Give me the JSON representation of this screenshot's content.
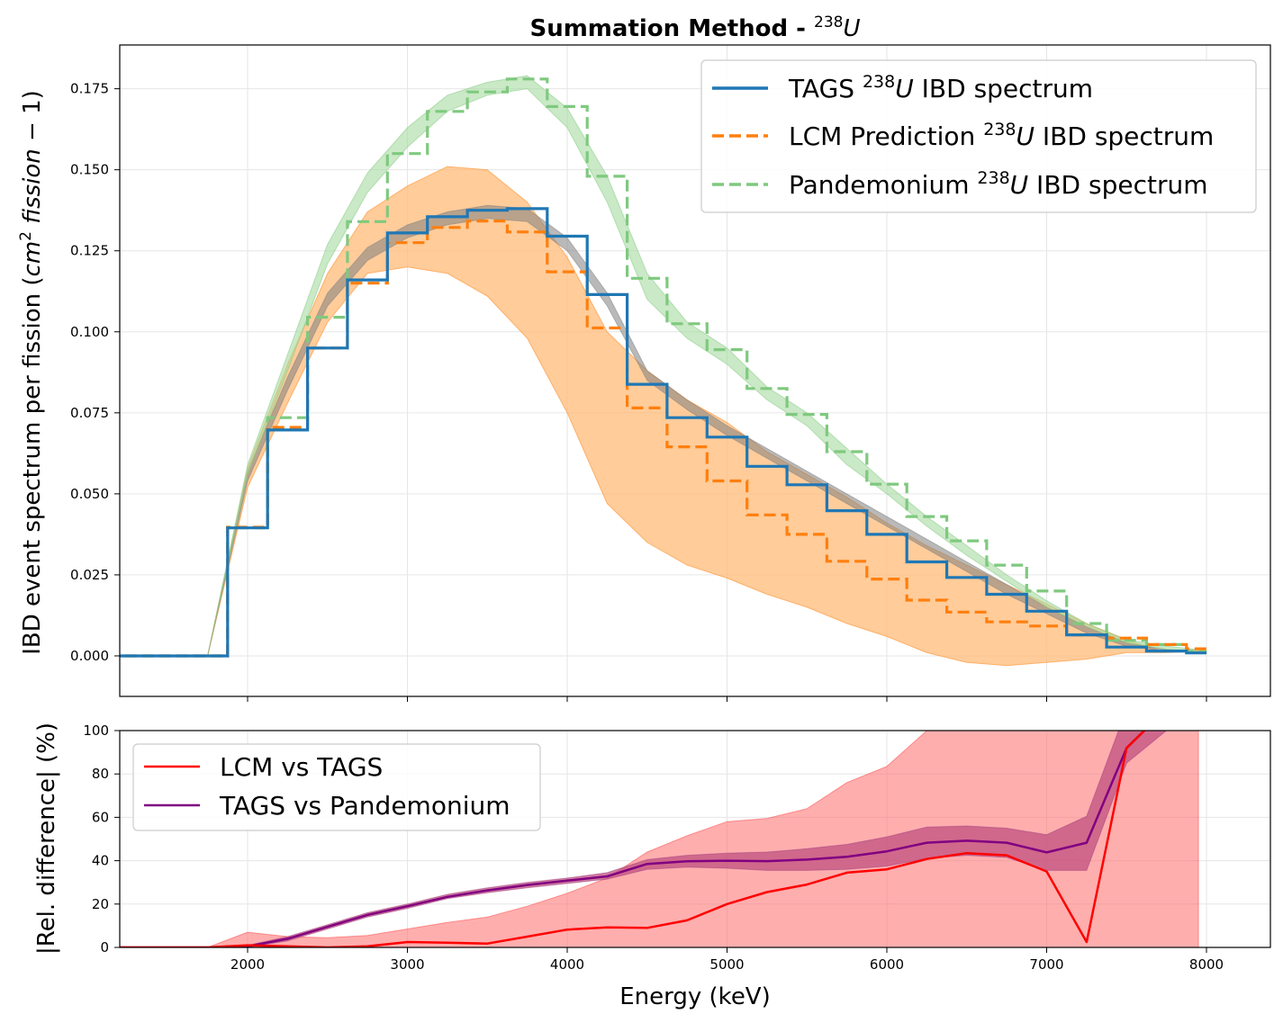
{
  "chart_data": [
    {
      "type": "line",
      "title": "Summation Method - ",
      "title_superscript": "238",
      "title_tail": "U",
      "ylabel": "IBD event spectrum per fission (",
      "ylabel_math": "cm",
      "ylabel_sup": "2",
      "ylabel_math2": " fission",
      "ylabel_tail": " − 1)",
      "xlim": [
        1200,
        8400
      ],
      "ylim": [
        -0.0125,
        0.1885
      ],
      "yticks": [
        0.0,
        0.025,
        0.05,
        0.075,
        0.1,
        0.125,
        0.15,
        0.175
      ],
      "ytick_labels": [
        "0.000",
        "0.025",
        "0.050",
        "0.075",
        "0.100",
        "0.125",
        "0.150",
        "0.175"
      ],
      "grid": true,
      "legend_placement": "top-right",
      "legend": [
        {
          "pre": "TAGS ",
          "sup": "238",
          "mid": "U",
          "post": " IBD spectrum"
        },
        {
          "pre": "LCM Prediction ",
          "sup": "238",
          "mid": "U",
          "post": " IBD spectrum"
        },
        {
          "pre": "Pandemonium ",
          "sup": "238",
          "mid": "U",
          "post": " IBD spectrum"
        }
      ],
      "colors": {
        "tags": "#1f77b4",
        "lcm": "#ff7f0e",
        "pandemonium": "#7fc97f",
        "tags_band": "#7f7f7f",
        "lcm_band": "#ffbb78",
        "pand_band": "#a6dba0"
      },
      "step_x": [
        1125,
        1375,
        1625,
        1875,
        2125,
        2375,
        2625,
        2875,
        3125,
        3375,
        3625,
        3875,
        4125,
        4375,
        4625,
        4875,
        5125,
        5375,
        5625,
        5875,
        6125,
        6375,
        6625,
        6875,
        7125,
        7375,
        7625,
        7875,
        8000
      ],
      "series": [
        {
          "name": "TAGS",
          "values": [
            0,
            0,
            0,
            0.0395,
            0.0697,
            0.095,
            0.116,
            0.1305,
            0.1355,
            0.1375,
            0.138,
            0.1295,
            0.1115,
            0.0838,
            0.0735,
            0.0675,
            0.0585,
            0.0528,
            0.0448,
            0.0375,
            0.029,
            0.0242,
            0.019,
            0.0138,
            0.0065,
            0.0027,
            0.0015,
            0.0009
          ]
        },
        {
          "name": "LCM Prediction",
          "values": [
            0,
            0,
            0,
            0.0397,
            0.0705,
            0.095,
            0.115,
            0.1275,
            0.1322,
            0.1342,
            0.1308,
            0.1185,
            0.1012,
            0.0765,
            0.0645,
            0.054,
            0.0435,
            0.0375,
            0.0292,
            0.0237,
            0.0172,
            0.0135,
            0.0105,
            0.0092,
            0.0065,
            0.0055,
            0.0035,
            0.0022
          ]
        },
        {
          "name": "Pandemonium",
          "values": [
            0,
            0,
            0,
            0.0395,
            0.0735,
            0.1045,
            0.134,
            0.155,
            0.168,
            0.174,
            0.178,
            0.1695,
            0.148,
            0.1165,
            0.1025,
            0.0945,
            0.0825,
            0.0745,
            0.063,
            0.053,
            0.043,
            0.0355,
            0.028,
            0.02,
            0.01,
            0.0048,
            0.0035,
            0.0015
          ]
        }
      ],
      "band_x": [
        1750,
        2000,
        2250,
        2500,
        2750,
        3000,
        3250,
        3500,
        3750,
        4000,
        4250,
        4500,
        4750,
        5000,
        5250,
        5500,
        5750,
        6000,
        6250,
        6500,
        6750,
        7000,
        7250,
        7500,
        7750,
        8000
      ],
      "bands": [
        {
          "name": "LCM band",
          "upper": [
            0,
            0.058,
            0.09,
            0.118,
            0.137,
            0.145,
            0.151,
            0.15,
            0.14,
            0.123,
            0.1,
            0.088,
            0.079,
            0.072,
            0.063,
            0.056,
            0.049,
            0.041,
            0.034,
            0.028,
            0.022,
            0.016,
            0.01,
            0.005,
            0.001,
            0.0015
          ],
          "lower": [
            0,
            0.052,
            0.078,
            0.103,
            0.118,
            0.12,
            0.118,
            0.111,
            0.098,
            0.075,
            0.047,
            0.035,
            0.028,
            0.024,
            0.019,
            0.015,
            0.01,
            0.006,
            0.001,
            -0.002,
            -0.003,
            -0.002,
            -0.001,
            0.001,
            0.001,
            0.0015
          ]
        },
        {
          "name": "TAGS band",
          "upper": [
            0,
            0.057,
            0.086,
            0.112,
            0.126,
            0.133,
            0.137,
            0.139,
            0.138,
            0.129,
            0.112,
            0.088,
            0.079,
            0.071,
            0.064,
            0.057,
            0.05,
            0.043,
            0.036,
            0.029,
            0.022,
            0.015,
            0.009,
            0.004,
            0.002,
            0.0014
          ],
          "lower": [
            0,
            0.054,
            0.082,
            0.108,
            0.122,
            0.129,
            0.133,
            0.135,
            0.134,
            0.125,
            0.108,
            0.085,
            0.076,
            0.068,
            0.061,
            0.054,
            0.047,
            0.04,
            0.033,
            0.026,
            0.019,
            0.013,
            0.007,
            0.003,
            0.0015,
            0.0012
          ]
        },
        {
          "name": "Pandemonium band",
          "upper": [
            0,
            0.059,
            0.093,
            0.127,
            0.149,
            0.163,
            0.173,
            0.177,
            0.179,
            0.169,
            0.148,
            0.118,
            0.103,
            0.095,
            0.083,
            0.075,
            0.064,
            0.053,
            0.043,
            0.034,
            0.025,
            0.017,
            0.01,
            0.005,
            0.003,
            0.0017
          ],
          "lower": [
            0,
            0.056,
            0.088,
            0.121,
            0.143,
            0.157,
            0.168,
            0.173,
            0.175,
            0.163,
            0.14,
            0.11,
            0.098,
            0.09,
            0.079,
            0.071,
            0.059,
            0.05,
            0.04,
            0.031,
            0.023,
            0.015,
            0.009,
            0.004,
            0.002,
            0.0012
          ]
        }
      ]
    },
    {
      "type": "line",
      "xlabel": "Energy (keV)",
      "ylabel": "|Rel. difference| (%)",
      "xlim": [
        1200,
        8400
      ],
      "ylim": [
        0,
        100
      ],
      "xticks": [
        2000,
        3000,
        4000,
        5000,
        6000,
        7000,
        8000
      ],
      "xtick_labels": [
        "2000",
        "3000",
        "4000",
        "5000",
        "6000",
        "7000",
        "8000"
      ],
      "yticks": [
        0,
        20,
        40,
        60,
        80,
        100
      ],
      "ytick_labels": [
        "0",
        "20",
        "40",
        "60",
        "80",
        "100"
      ],
      "grid": true,
      "legend_placement": "top-left",
      "legend": [
        {
          "label": "LCM vs TAGS"
        },
        {
          "label": "TAGS vs Pandemonium"
        }
      ],
      "colors": {
        "lcm_vs_tags": "#ff0000",
        "tags_vs_pand": "#800080",
        "lcm_band": "#ff6b6b",
        "pand_band": "#c05080"
      },
      "x": [
        1200,
        1750,
        2000,
        2250,
        2500,
        2750,
        3000,
        3250,
        3500,
        3750,
        4000,
        4250,
        4500,
        4750,
        5000,
        5250,
        5500,
        5750,
        6000,
        6250,
        6500,
        6750,
        7000,
        7250,
        7500,
        7750,
        8000
      ],
      "series": [
        {
          "name": "LCM vs TAGS",
          "values": [
            0,
            0,
            1,
            0.5,
            0,
            0.5,
            2.5,
            2.2,
            1.8,
            5,
            8.2,
            9.2,
            9,
            12.5,
            20,
            25.5,
            29,
            34.5,
            36,
            40.8,
            43.5,
            42.5,
            35,
            2.5,
            92,
            110,
            110
          ]
        },
        {
          "name": "TAGS vs Pandemonium",
          "values": [
            0,
            0,
            0.5,
            4,
            9.5,
            15,
            19,
            23.3,
            26.3,
            28.8,
            30.8,
            32.8,
            38.5,
            39.7,
            40,
            39.8,
            40.5,
            41.8,
            44.3,
            48.3,
            49.2,
            48.3,
            43.8,
            48.3,
            92,
            110,
            110
          ]
        }
      ],
      "band_x": [
        1750,
        2000,
        2250,
        2500,
        2750,
        3000,
        3250,
        3500,
        3750,
        4000,
        4250,
        4500,
        4750,
        5000,
        5250,
        5500,
        5750,
        6000,
        6250,
        6500,
        6750,
        7000,
        7250,
        7500,
        7750,
        7950
      ],
      "bands": [
        {
          "name": "LCM vs TAGS band",
          "upper": [
            0,
            7,
            5,
            4.5,
            5.5,
            8.5,
            11.5,
            14,
            19,
            25,
            32,
            44,
            51.5,
            58,
            59.5,
            64,
            76,
            83.5,
            100,
            110,
            110,
            110,
            110,
            110,
            110,
            110
          ],
          "lower": [
            0,
            0,
            0,
            0,
            0,
            0,
            0,
            0,
            0,
            0,
            0,
            0,
            0,
            0,
            0,
            0,
            0,
            0,
            0,
            0,
            0,
            0,
            0,
            0,
            0,
            0
          ]
        },
        {
          "name": "TAGS vs Pandemonium band",
          "upper": [
            0,
            1,
            5,
            10.5,
            16,
            20,
            24.5,
            27.5,
            30,
            32,
            34.5,
            40.5,
            42.5,
            43.5,
            44,
            45.5,
            47.5,
            51,
            55.5,
            56,
            55,
            52,
            60.5,
            110,
            110,
            110
          ],
          "lower": [
            0,
            0,
            3,
            8.5,
            14,
            18,
            22.5,
            25.2,
            27.5,
            29.5,
            31.5,
            36,
            37,
            36.5,
            35.5,
            35.5,
            36,
            37.5,
            41,
            42.5,
            41.5,
            35.5,
            35.5,
            85,
            100,
            110
          ]
        }
      ]
    }
  ]
}
